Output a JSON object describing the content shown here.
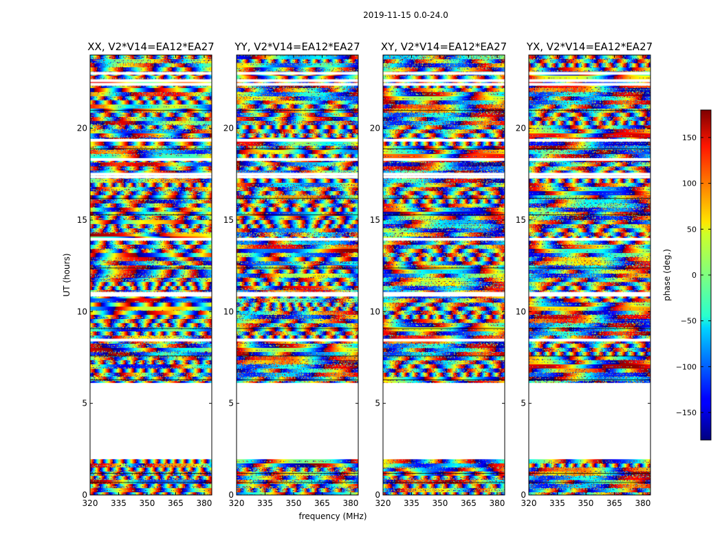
{
  "figure": {
    "suptitle": "2019-11-15 0.0-24.0"
  },
  "chart_data": {
    "type": "heatmap",
    "panels": [
      {
        "title": "XX, V2*V14=EA12*EA27"
      },
      {
        "title": "YY, V2*V14=EA12*EA27"
      },
      {
        "title": "XY, V2*V14=EA12*EA27"
      },
      {
        "title": "YX, V2*V14=EA12*EA27"
      }
    ],
    "xlabel": "frequency (MHz)",
    "ylabel": "UT (hours)",
    "xlim": [
      320,
      384
    ],
    "ylim": [
      0,
      24
    ],
    "xticks": [
      320,
      335,
      350,
      365,
      380
    ],
    "yticks": [
      0,
      5,
      10,
      15,
      20
    ],
    "z_label": "phase (deg.)",
    "z_range": [
      -180,
      180
    ],
    "colorbar_ticks": [
      150,
      100,
      50,
      0,
      -50,
      -100,
      -150
    ],
    "colorbar_tick_labels": [
      "150",
      "100",
      "50",
      "0",
      "−50",
      "−100",
      "−150"
    ],
    "colormap": "jet",
    "data_blocks_ut": [
      [
        0.0,
        1.95
      ],
      [
        6.1,
        24.0
      ]
    ],
    "gap_ut": [
      [
        1.95,
        6.1
      ]
    ],
    "flag_lines_ut": [
      8.45,
      10.9,
      11.0,
      13.95,
      17.35,
      17.5,
      18.3,
      19.35,
      22.4,
      22.6,
      23.0
    ]
  }
}
